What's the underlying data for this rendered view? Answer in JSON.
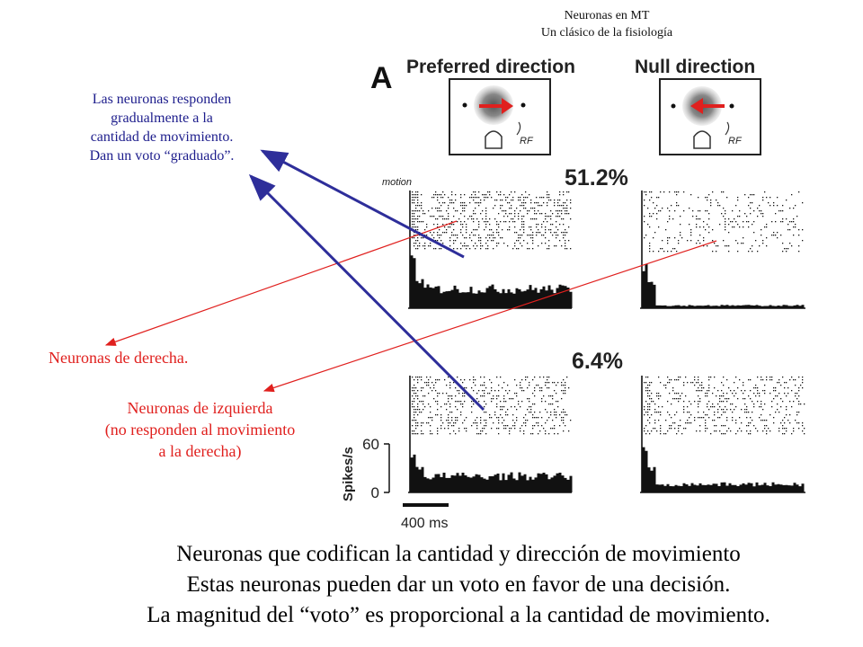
{
  "header": {
    "line1": "Neuronas en MT",
    "line2": "Un clásico de la fisiología"
  },
  "figure": {
    "panel_letter": "A",
    "preferred_label": "Preferred direction",
    "null_label": "Null direction",
    "rf_label": "RF",
    "motion_label": "motion",
    "coherence_high": "51.2%",
    "coherence_low": "6.4%",
    "yaxis_label": "Spikes/s",
    "ytick_top": "60",
    "ytick_bottom": "0",
    "scalebar_label": "400 ms",
    "colors": {
      "arrow_red": "#e0201e",
      "arrow_blue": "#2e2e9a",
      "ink": "#111111"
    }
  },
  "annotations": {
    "blue_note": [
      "Las neuronas responden",
      "gradualmente a la",
      "cantidad de movimiento.",
      "Dan un voto “graduado”."
    ],
    "right_neurons": "Neuronas de derecha.",
    "left_neurons": [
      "Neuronas de izquierda",
      "(no responden al movimiento",
      "a la derecha)"
    ]
  },
  "bottom": {
    "line1": "Neuronas que codifican la cantidad y dirección de movimiento",
    "line2": "Estas neuronas pueden  dar un voto en favor de una decisión.",
    "line3": "La magnitud del “voto” es proporcional a la cantidad de movimiento."
  }
}
